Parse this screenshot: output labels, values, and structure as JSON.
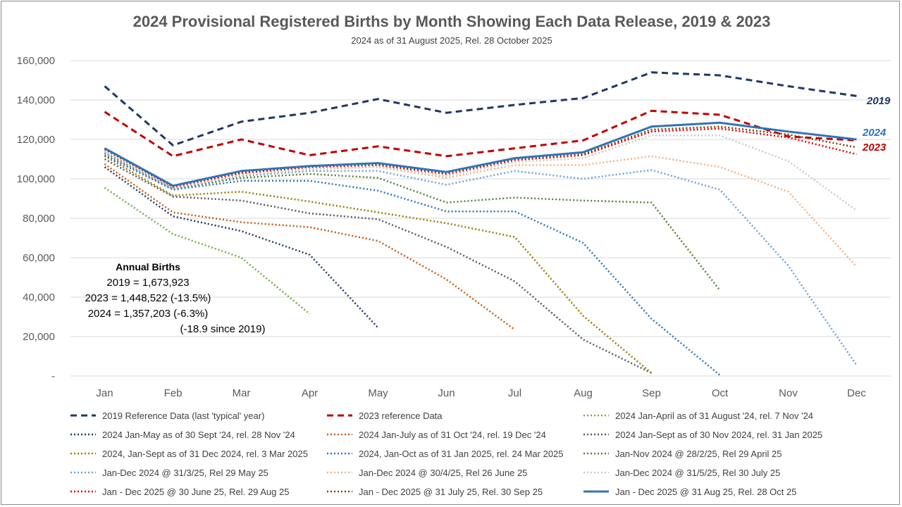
{
  "chart_data": {
    "type": "line",
    "title": "2024 Provisional Registered Births by Month Showing Each Data Release, 2019 & 2023",
    "subtitle": "2024 as of 31 August 2025, Rel. 28 October 2025",
    "categories": [
      "Jan",
      "Feb",
      "Mar",
      "Apr",
      "May",
      "Jun",
      "Jul",
      "Aug",
      "Sep",
      "Oct",
      "Nov",
      "Dec"
    ],
    "ylim": [
      0,
      160000
    ],
    "yticks": [
      0,
      20000,
      40000,
      60000,
      80000,
      100000,
      120000,
      140000,
      160000
    ],
    "ytick_labels": [
      "-",
      "20,000",
      "40,000",
      "60,000",
      "80,000",
      "100,000",
      "120,000",
      "140,000",
      "160,000"
    ],
    "grid": true,
    "legend_position": "bottom",
    "series": [
      {
        "name": "2019  Reference Data (last 'typical' year)",
        "color": "#1f3864",
        "style": "dash",
        "width": 3,
        "end_label": "2019",
        "values": [
          147000,
          117000,
          129000,
          133500,
          140500,
          133500,
          137500,
          141000,
          154000,
          152500,
          147000,
          142000
        ]
      },
      {
        "name": "2023 reference Data",
        "color": "#c00000",
        "style": "dash",
        "width": 3,
        "end_label": "2023",
        "values": [
          134000,
          111500,
          120000,
          112000,
          116500,
          111500,
          115500,
          119500,
          134500,
          132500,
          121500,
          119500
        ]
      },
      {
        "name": "2024 Jan-April as of 31 August '24, rel. 7 Nov '24",
        "color": "#70ad47",
        "style": "dot",
        "width": 2.5,
        "values": [
          95500,
          72000,
          60000,
          31500,
          null,
          null,
          null,
          null,
          null,
          null,
          null,
          null
        ]
      },
      {
        "name": "2024 Jan-May as of 30 Sept '24, rel. 28 Nov '24",
        "color": "#203864",
        "style": "dot",
        "width": 2.5,
        "values": [
          106000,
          81000,
          73500,
          61500,
          24500,
          null,
          null,
          null,
          null,
          null,
          null,
          null
        ]
      },
      {
        "name": "2024 Jan-July as of 31 Oct '24, rel. 19 Dec '24",
        "color": "#c55a11",
        "style": "dot",
        "width": 2.5,
        "values": [
          107500,
          83000,
          78000,
          75500,
          68500,
          49000,
          23500,
          null,
          null,
          null,
          null,
          null
        ]
      },
      {
        "name": "2024 Jan-Sept as of 30 Nov 2024, rel. 31 Jan 2025",
        "color": "#595959",
        "style": "dot",
        "width": 2.5,
        "values": [
          110000,
          91000,
          89000,
          82500,
          79500,
          65500,
          48000,
          18500,
          1500,
          null,
          null,
          null
        ]
      },
      {
        "name": "2024, Jan-Sept as of 31 Dec 2024, rel. 3 Mar 2025",
        "color": "#9c7a00",
        "style": "dot",
        "width": 2.5,
        "values": [
          111500,
          91500,
          93500,
          88500,
          83000,
          77500,
          70500,
          30500,
          1500,
          null,
          null,
          null
        ]
      },
      {
        "name": "2024, Jan-Oct as of 31 Jan 2025, rel. 24 Mar 2025",
        "color": "#2e75b6",
        "style": "dot",
        "width": 2.5,
        "values": [
          112000,
          94500,
          99000,
          99000,
          94000,
          83500,
          83500,
          67500,
          29000,
          500,
          null,
          null
        ]
      },
      {
        "name": "Jan-Nov 2024 @ 28/2/25, Rel 29 April 25",
        "color": "#548235",
        "style": "dot",
        "width": 2.5,
        "values": [
          113000,
          95000,
          100500,
          102500,
          100500,
          88000,
          90500,
          89000,
          88000,
          43500,
          null,
          null
        ]
      },
      {
        "name": "Jan-Dec 2024 @ 31/3/25, Rel 29 May 25",
        "color": "#6f9fd8",
        "style": "dot",
        "width": 2.5,
        "values": [
          113500,
          95000,
          101500,
          104000,
          104000,
          97000,
          104000,
          100000,
          104500,
          94500,
          56000,
          5500
        ]
      },
      {
        "name": "Jan-Dec 2024 @ 30/4/25, Rel 26 June 25",
        "color": "#f4b183",
        "style": "dot",
        "width": 2.5,
        "values": [
          114000,
          95500,
          102000,
          105000,
          106000,
          100500,
          107000,
          107000,
          111500,
          106000,
          93500,
          55500
        ]
      },
      {
        "name": "Jan-Dec 2024 @ 31/5/25, Rel 30 July 25",
        "color": "#c9c9c9",
        "style": "dot",
        "width": 2.5,
        "values": [
          114500,
          96000,
          102500,
          105500,
          106500,
          101500,
          108500,
          110500,
          122000,
          122000,
          109000,
          84000
        ]
      },
      {
        "name": "Jan - Dec 2025 @ 30 June 25, Rel. 29 Aug 25",
        "color": "#e00000",
        "style": "dot",
        "width": 2.5,
        "values": [
          115000,
          96000,
          103000,
          106000,
          107000,
          102500,
          109500,
          112000,
          124000,
          125500,
          121000,
          112500
        ]
      },
      {
        "name": "Jan - Dec 2025 @ 31 July 25, Rel. 30 Sep 25",
        "color": "#843c0c",
        "style": "dot",
        "width": 2.5,
        "values": [
          115500,
          96500,
          103500,
          106500,
          107500,
          103000,
          110000,
          112500,
          125000,
          126500,
          122500,
          116000
        ]
      },
      {
        "name": "Jan - Dec 2025 @ 31 Aug 25, Rel. 28 Oct 25",
        "color": "#2e75b6",
        "style": "solid",
        "width": 3,
        "end_label": "2024",
        "values": [
          115500,
          96500,
          104000,
          106500,
          108000,
          103500,
          110500,
          113500,
          126500,
          128500,
          124000,
          120000
        ]
      }
    ],
    "annotation": {
      "heading": "Annual Births",
      "lines": [
        "2019 = 1,673,923",
        "2023 = 1,448,522 (-13.5%)",
        "2024 = 1,357,203 (-6.3%)",
        "(-18.9 since 2019)"
      ]
    }
  }
}
